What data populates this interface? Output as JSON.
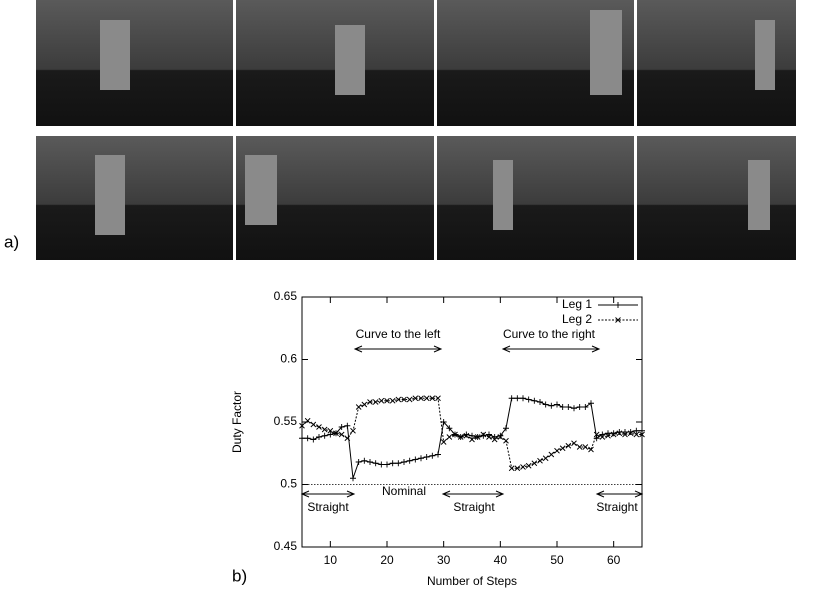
{
  "panel_labels": [
    "a)",
    "b)"
  ],
  "chart_data": {
    "type": "line",
    "xlabel": "Number of Steps",
    "ylabel": "Duty Factor",
    "x": [
      5,
      6,
      7,
      8,
      9,
      10,
      11,
      12,
      13,
      14,
      15,
      16,
      17,
      18,
      19,
      20,
      21,
      22,
      23,
      24,
      25,
      26,
      27,
      28,
      29,
      30,
      31,
      32,
      33,
      34,
      35,
      36,
      37,
      38,
      39,
      40,
      41,
      42,
      43,
      44,
      45,
      46,
      47,
      48,
      49,
      50,
      51,
      52,
      53,
      54,
      55,
      56,
      57,
      58,
      59,
      60,
      61,
      62,
      63,
      64,
      65
    ],
    "series": [
      {
        "name": "Leg 1",
        "color": "#000000",
        "marker": "+",
        "dash": "solid",
        "values": [
          0.537,
          0.537,
          0.536,
          0.538,
          0.539,
          0.54,
          0.541,
          0.546,
          0.547,
          0.505,
          0.518,
          0.519,
          0.518,
          0.517,
          0.516,
          0.516,
          0.517,
          0.517,
          0.518,
          0.519,
          0.52,
          0.521,
          0.522,
          0.523,
          0.524,
          0.55,
          0.545,
          0.54,
          0.538,
          0.54,
          0.539,
          0.538,
          0.539,
          0.54,
          0.538,
          0.539,
          0.545,
          0.569,
          0.569,
          0.569,
          0.568,
          0.567,
          0.566,
          0.564,
          0.563,
          0.564,
          0.562,
          0.562,
          0.561,
          0.562,
          0.562,
          0.565,
          0.537,
          0.54,
          0.541,
          0.541,
          0.542,
          0.542,
          0.542,
          0.543,
          0.543
        ]
      },
      {
        "name": "Leg 2",
        "color": "#000000",
        "marker": "x",
        "dash": "dotted",
        "values": [
          0.547,
          0.551,
          0.548,
          0.546,
          0.544,
          0.543,
          0.541,
          0.54,
          0.537,
          0.543,
          0.562,
          0.564,
          0.566,
          0.566,
          0.567,
          0.567,
          0.567,
          0.568,
          0.568,
          0.568,
          0.569,
          0.569,
          0.569,
          0.569,
          0.569,
          0.534,
          0.538,
          0.54,
          0.538,
          0.539,
          0.536,
          0.538,
          0.54,
          0.538,
          0.536,
          0.538,
          0.535,
          0.513,
          0.513,
          0.514,
          0.515,
          0.517,
          0.519,
          0.521,
          0.524,
          0.527,
          0.529,
          0.531,
          0.533,
          0.53,
          0.53,
          0.528,
          0.54,
          0.538,
          0.539,
          0.54,
          0.541,
          0.54,
          0.541,
          0.54,
          0.54
        ]
      }
    ],
    "hline": 0.5,
    "xlim": [
      5,
      65
    ],
    "xticks": [
      10,
      20,
      30,
      40,
      50,
      60
    ],
    "ylim": [
      0.45,
      0.65
    ],
    "yticks": [
      0.45,
      0.5,
      0.55,
      0.6,
      0.65
    ],
    "legend": "upper right",
    "annotations": [
      "Curve to the left",
      "Curve to the right",
      "Nominal",
      "Straight",
      "Straight",
      "Straight"
    ]
  }
}
